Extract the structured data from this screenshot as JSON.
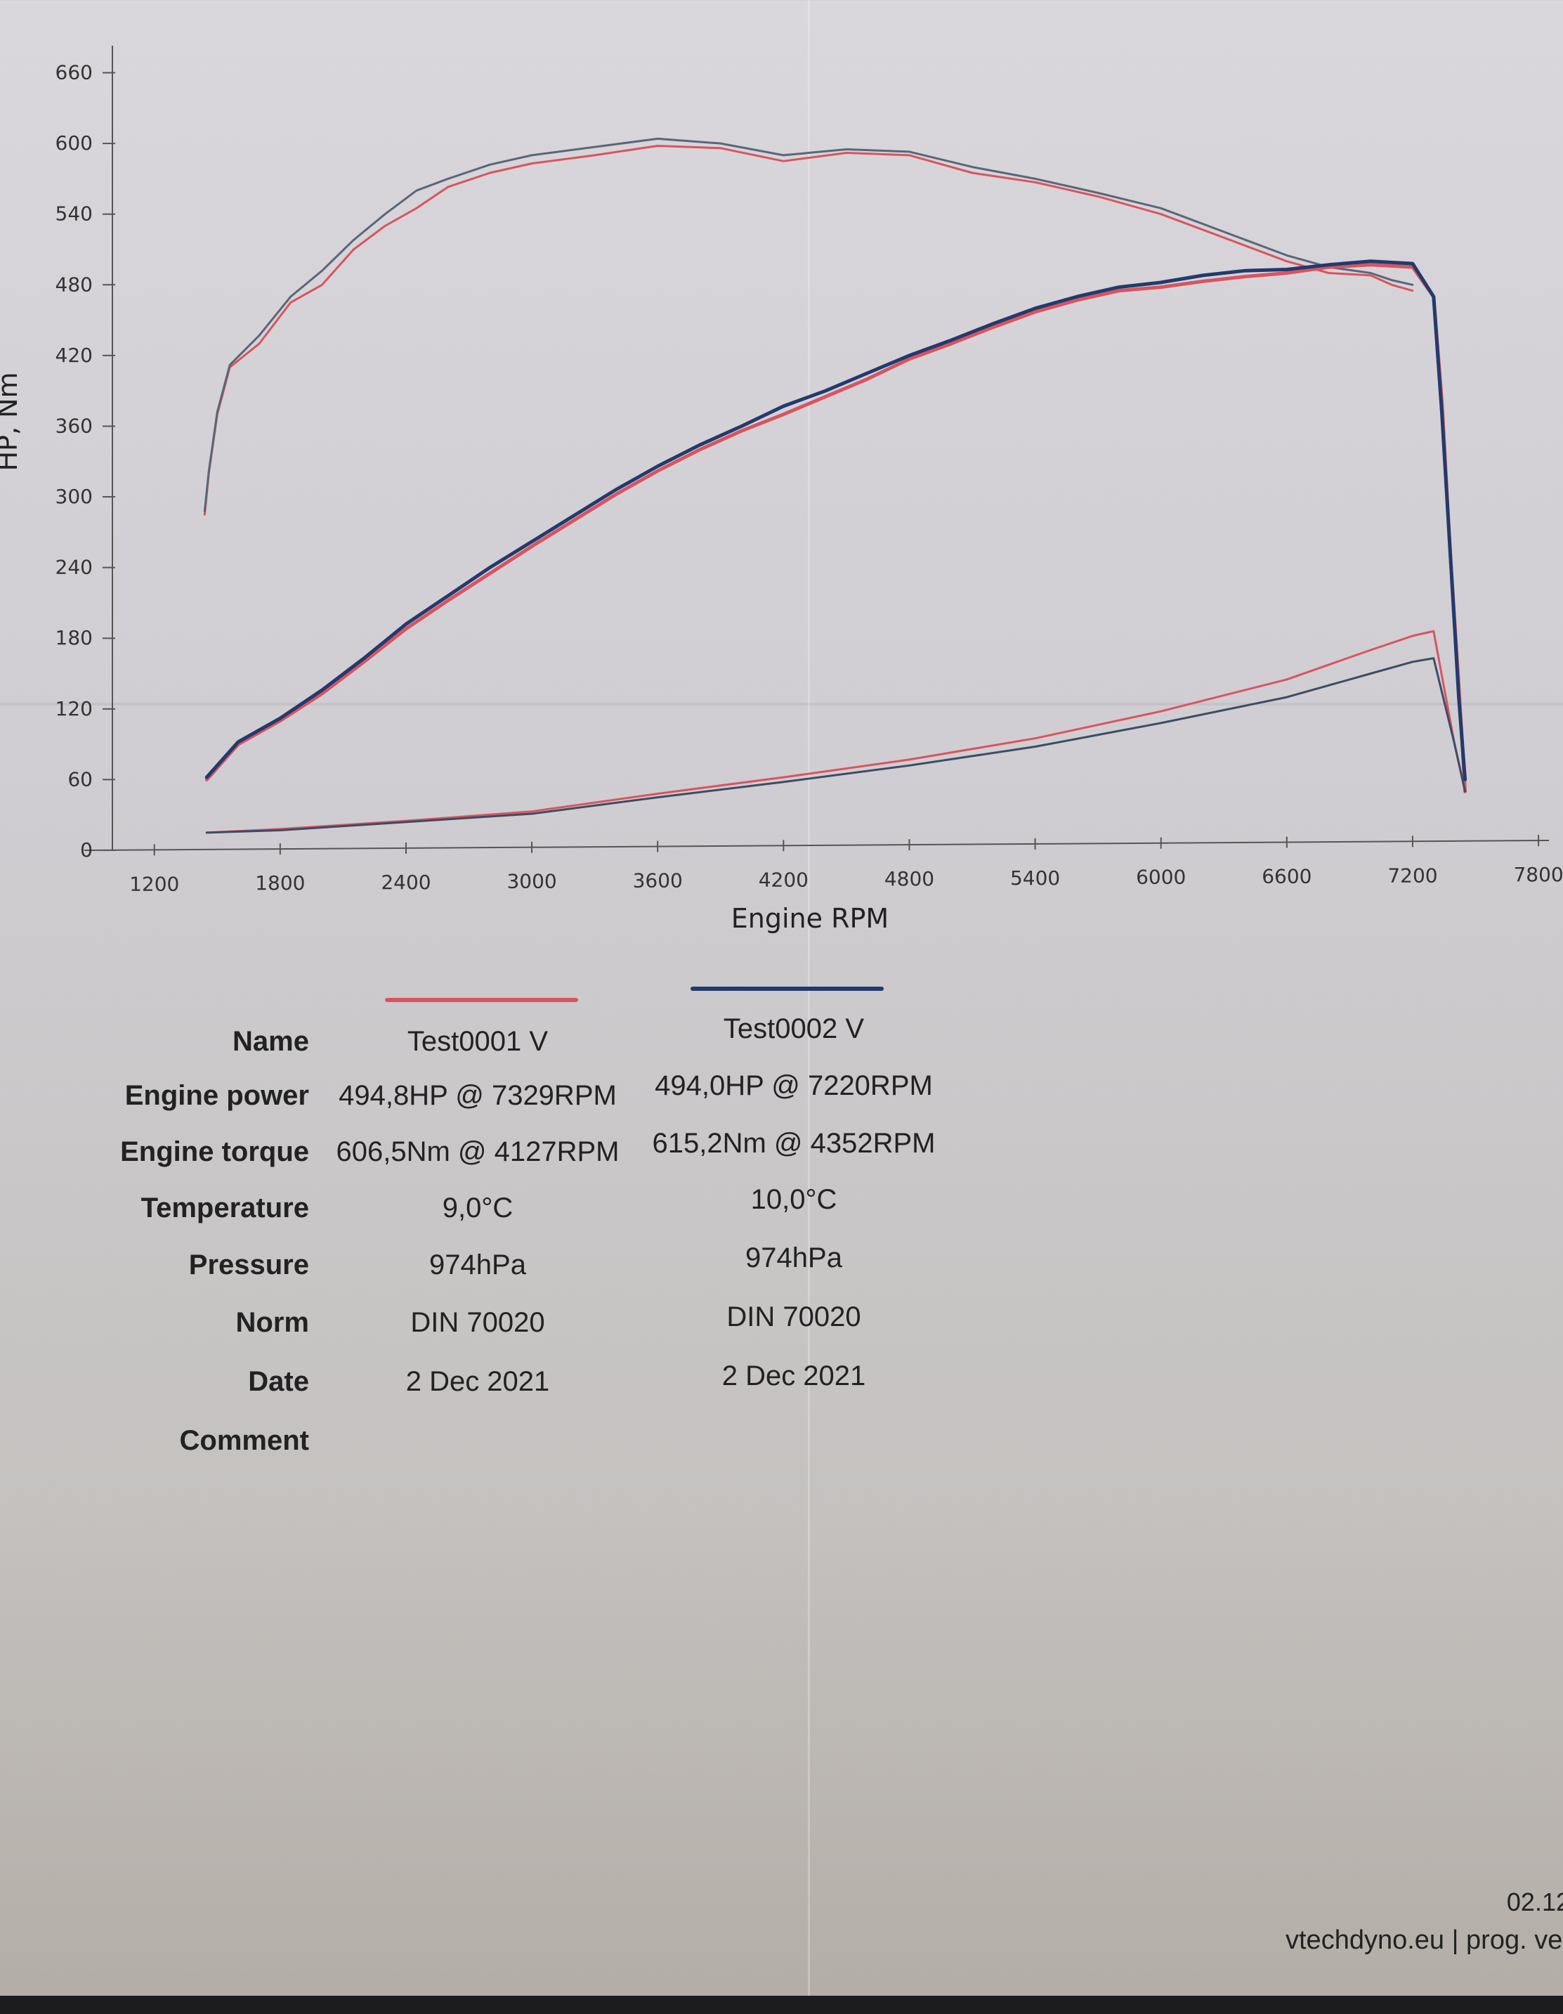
{
  "chart_data": {
    "type": "line",
    "xlabel": "Engine RPM",
    "ylabel": "HP, Nm",
    "xlim": [
      1000,
      7850
    ],
    "ylim": [
      0,
      680
    ],
    "x_ticks": [
      1200,
      1800,
      2400,
      3000,
      3600,
      4200,
      4800,
      5400,
      6000,
      6600,
      7200,
      7800
    ],
    "y_ticks": [
      0,
      60,
      120,
      180,
      240,
      300,
      360,
      420,
      480,
      540,
      600,
      660
    ],
    "grid": false,
    "series": [
      {
        "name": "Test0001 V",
        "kind": "torque",
        "color": "#d9545e",
        "x": [
          1440,
          1460,
          1500,
          1560,
          1700,
          1850,
          2000,
          2150,
          2300,
          2450,
          2600,
          2800,
          3000,
          3300,
          3600,
          3900,
          4200,
          4500,
          4800,
          5100,
          5400,
          5700,
          6000,
          6300,
          6600,
          6800,
          7000,
          7100,
          7200
        ],
        "y": [
          285,
          320,
          370,
          410,
          430,
          465,
          480,
          510,
          530,
          545,
          563,
          575,
          583,
          590,
          598,
          596,
          585,
          592,
          590,
          575,
          567,
          555,
          540,
          520,
          500,
          490,
          488,
          480,
          475
        ]
      },
      {
        "name": "Test0002 V",
        "kind": "torque",
        "color": "#5a6678",
        "x": [
          1440,
          1460,
          1500,
          1560,
          1700,
          1850,
          2000,
          2150,
          2300,
          2450,
          2600,
          2800,
          3000,
          3300,
          3600,
          3900,
          4200,
          4500,
          4800,
          5100,
          5400,
          5700,
          6000,
          6300,
          6600,
          6800,
          7000,
          7100,
          7200
        ],
        "y": [
          288,
          322,
          372,
          412,
          437,
          470,
          492,
          518,
          540,
          560,
          570,
          582,
          590,
          597,
          604,
          600,
          590,
          595,
          593,
          580,
          570,
          558,
          545,
          525,
          505,
          495,
          490,
          484,
          480
        ]
      },
      {
        "name": "Test0001 V",
        "kind": "power",
        "color": "#d9545e",
        "x": [
          1450,
          1600,
          1800,
          2000,
          2200,
          2400,
          2600,
          2800,
          3000,
          3200,
          3400,
          3600,
          3800,
          4000,
          4200,
          4400,
          4600,
          4800,
          5000,
          5200,
          5400,
          5600,
          5800,
          6000,
          6200,
          6400,
          6600,
          6800,
          7000,
          7200,
          7300,
          7340,
          7380,
          7420,
          7450
        ],
        "y": [
          60,
          90,
          110,
          133,
          160,
          188,
          212,
          235,
          258,
          280,
          302,
          322,
          340,
          356,
          370,
          385,
          400,
          417,
          430,
          444,
          457,
          467,
          475,
          478,
          483,
          487,
          490,
          495,
          497,
          495,
          470,
          380,
          250,
          140,
          50
        ]
      },
      {
        "name": "Test0002 V",
        "kind": "power",
        "color": "#233a6e",
        "x": [
          1450,
          1600,
          1800,
          2000,
          2200,
          2400,
          2600,
          2800,
          3000,
          3200,
          3400,
          3600,
          3800,
          4000,
          4200,
          4400,
          4600,
          4800,
          5000,
          5200,
          5400,
          5600,
          5800,
          6000,
          6200,
          6400,
          6600,
          6800,
          7000,
          7200,
          7300,
          7340,
          7380,
          7420,
          7450
        ],
        "y": [
          62,
          92,
          112,
          136,
          163,
          192,
          216,
          240,
          262,
          284,
          306,
          326,
          344,
          360,
          377,
          390,
          405,
          420,
          433,
          447,
          460,
          470,
          478,
          482,
          488,
          492,
          493,
          497,
          500,
          498,
          470,
          370,
          250,
          130,
          60
        ]
      },
      {
        "name": "Test0001 V",
        "kind": "losses",
        "color": "#d9545e",
        "x": [
          1450,
          1800,
          2400,
          3000,
          3600,
          4200,
          4800,
          5400,
          6000,
          6600,
          7000,
          7200,
          7300,
          7400,
          7450
        ],
        "y": [
          15,
          18,
          25,
          33,
          48,
          62,
          77,
          95,
          118,
          145,
          170,
          182,
          186,
          90,
          50
        ]
      },
      {
        "name": "Test0002 V",
        "kind": "losses",
        "color": "#3c4c66",
        "x": [
          1450,
          1800,
          2400,
          3000,
          3600,
          4200,
          4800,
          5400,
          6000,
          6600,
          7000,
          7200,
          7300,
          7400,
          7450
        ],
        "y": [
          15,
          17,
          24,
          31,
          45,
          58,
          72,
          88,
          108,
          130,
          150,
          160,
          163,
          90,
          50
        ]
      }
    ]
  },
  "legend": {
    "run1_color": "#d9545e",
    "run2_color": "#233a6e"
  },
  "table": {
    "rows": [
      {
        "label": "Name",
        "v1": "Test0001 V",
        "v2": "Test0002 V"
      },
      {
        "label": "Engine power",
        "v1": "494,8HP @ 7329RPM",
        "v2": "494,0HP @ 7220RPM"
      },
      {
        "label": "Engine torque",
        "v1": "606,5Nm @ 4127RPM",
        "v2": "615,2Nm @ 4352RPM"
      },
      {
        "label": "Temperature",
        "v1": "9,0°C",
        "v2": "10,0°C"
      },
      {
        "label": "Pressure",
        "v1": "974hPa",
        "v2": "974hPa"
      },
      {
        "label": "Norm",
        "v1": "DIN 70020",
        "v2": "DIN 70020"
      },
      {
        "label": "Date",
        "v1": "2 Dec 2021",
        "v2": "2 Dec 2021"
      },
      {
        "label": "Comment",
        "v1": "",
        "v2": ""
      }
    ]
  },
  "footer": {
    "date_fragment": "02.12.",
    "site": "vtechdyno.eu | prog. ve"
  }
}
